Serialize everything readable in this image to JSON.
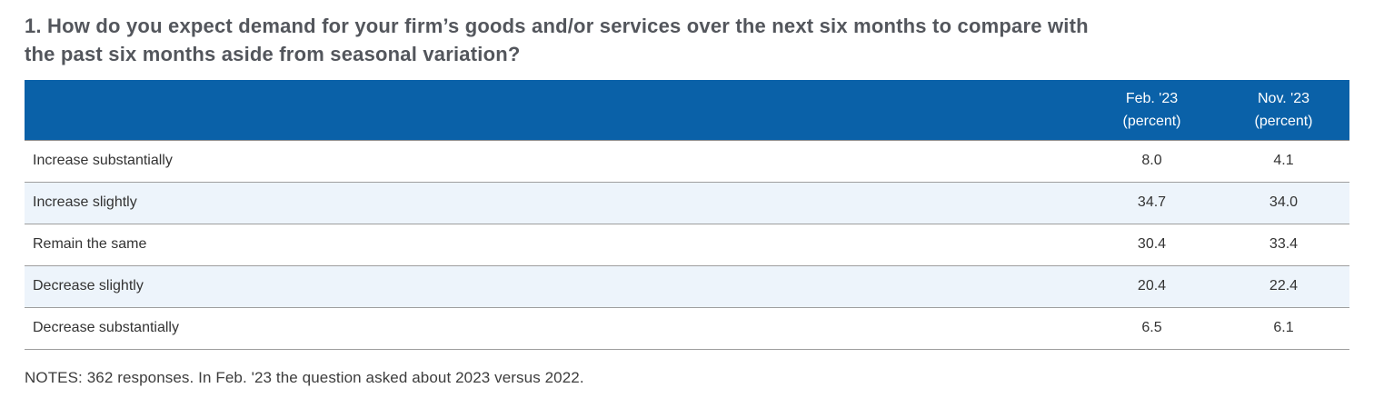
{
  "page": {
    "title_line1": "1. How do you expect demand for your firm’s goods and/or services over the next six months to compare with",
    "title_line2": "the past six months aside from seasonal variation?",
    "notes": "NOTES: 362 responses. In Feb. '23 the question asked about 2023 versus 2022."
  },
  "table": {
    "columns": [
      {
        "period": "Feb. '23",
        "unit": "(percent)"
      },
      {
        "period": "Nov. '23",
        "unit": "(percent)"
      }
    ],
    "rows": [
      {
        "label": "Increase substantially",
        "feb": "8.0",
        "nov": "4.1"
      },
      {
        "label": "Increase slightly",
        "feb": "34.7",
        "nov": "34.0"
      },
      {
        "label": "Remain the same",
        "feb": "30.4",
        "nov": "33.4"
      },
      {
        "label": "Decrease slightly",
        "feb": "20.4",
        "nov": "22.4"
      },
      {
        "label": "Decrease substantially",
        "feb": "6.5",
        "nov": "6.1"
      }
    ]
  },
  "colors": {
    "header_bg": "#0a61a8",
    "header_text": "#ffffff",
    "stripe_bg": "#edf4fb",
    "divider": "#9e9e9e",
    "title_text": "#53565c",
    "body_text": "#333333"
  },
  "chart_data": {
    "type": "table",
    "title": "1. How do you expect demand for your firm’s goods and/or services over the next six months to compare with the past six months aside from seasonal variation?",
    "categories": [
      "Increase substantially",
      "Increase slightly",
      "Remain the same",
      "Decrease slightly",
      "Decrease substantially"
    ],
    "series": [
      {
        "name": "Feb. '23 (percent)",
        "values": [
          8.0,
          34.7,
          30.4,
          20.4,
          6.5
        ]
      },
      {
        "name": "Nov. '23 (percent)",
        "values": [
          4.1,
          34.0,
          33.4,
          22.4,
          6.1
        ]
      }
    ],
    "notes": "NOTES: 362 responses. In Feb. '23 the question asked about 2023 versus 2022."
  }
}
